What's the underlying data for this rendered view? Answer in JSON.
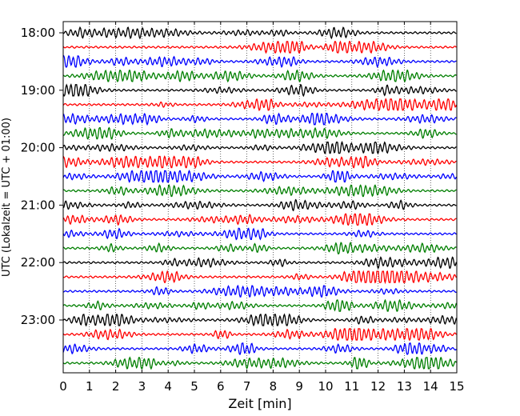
{
  "chart_data": {
    "type": "line",
    "title": "",
    "xlabel": "Zeit  [min]",
    "ylabel": "UTC (Lokalzeit = UTC + 01:00)",
    "xlim": [
      0,
      15
    ],
    "x_ticks": [
      0,
      1,
      2,
      3,
      4,
      5,
      6,
      7,
      8,
      9,
      10,
      11,
      12,
      13,
      14,
      15
    ],
    "y_tick_labels": [
      "18:00",
      "19:00",
      "20:00",
      "21:00",
      "22:00",
      "23:00"
    ],
    "y_tick_rows": [
      0,
      4,
      8,
      12,
      16,
      20
    ],
    "row_count": 24,
    "row_minutes": 15,
    "grid": "vertical dotted at each minute",
    "colors": [
      "#000000",
      "#ff0000",
      "#0000ff",
      "#007f00"
    ],
    "series": [
      {
        "start": "18:00"
      },
      {
        "start": "18:15"
      },
      {
        "start": "18:30"
      },
      {
        "start": "18:45"
      },
      {
        "start": "19:00"
      },
      {
        "start": "19:15"
      },
      {
        "start": "19:30"
      },
      {
        "start": "19:45"
      },
      {
        "start": "20:00"
      },
      {
        "start": "20:15"
      },
      {
        "start": "20:30"
      },
      {
        "start": "20:45"
      },
      {
        "start": "21:00"
      },
      {
        "start": "21:15"
      },
      {
        "start": "21:30"
      },
      {
        "start": "21:45"
      },
      {
        "start": "22:00"
      },
      {
        "start": "22:15"
      },
      {
        "start": "22:30"
      },
      {
        "start": "22:45"
      },
      {
        "start": "23:00"
      },
      {
        "start": "23:15"
      },
      {
        "start": "23:30"
      },
      {
        "start": "23:45"
      }
    ]
  }
}
